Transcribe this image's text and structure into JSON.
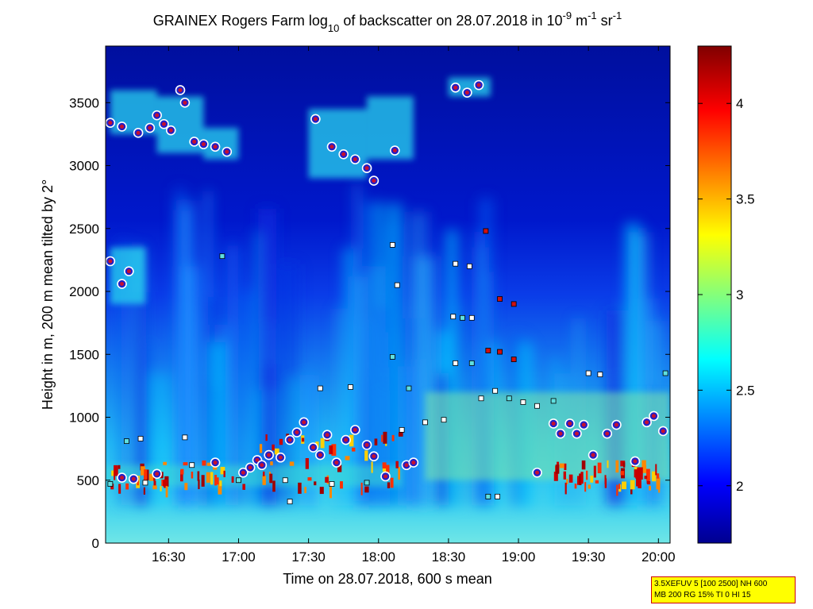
{
  "chart_data": {
    "type": "heatmap",
    "title": "GRAINEX Rogers Farm log",
    "title_sub": "10",
    "title_mid": " of backscatter on 28.07.2018 in 10",
    "title_sup1": "-9",
    "title_unit1": " m",
    "title_sup2": "-1",
    "title_unit2": " sr",
    "title_sup3": "-1",
    "xlabel": "Time on 28.07.2018, 600 s mean",
    "ylabel": "Height in m, 200 m mean tilted by 2°",
    "xlim": [
      "16:03",
      "20:05"
    ],
    "ylim": [
      0,
      3950
    ],
    "x_ticks": [
      "16:30",
      "17:00",
      "17:30",
      "18:00",
      "18:30",
      "19:00",
      "19:30",
      "20:00"
    ],
    "y_ticks": [
      0,
      500,
      1000,
      1500,
      2000,
      2500,
      3000,
      3500
    ],
    "colorbar": {
      "range": [
        1.7,
        4.3
      ],
      "ticks": [
        2,
        2.5,
        3,
        3.5,
        4
      ],
      "colormap": "jet",
      "colors": [
        "#00008f",
        "#0000ff",
        "#00ffff",
        "#ffff00",
        "#ff0000",
        "#800000"
      ]
    },
    "cloud_base_markers": [
      {
        "time": "16:05",
        "height": 3340
      },
      {
        "time": "16:10",
        "height": 3310
      },
      {
        "time": "16:17",
        "height": 3260
      },
      {
        "time": "16:22",
        "height": 3300
      },
      {
        "time": "16:25",
        "height": 3400
      },
      {
        "time": "16:28",
        "height": 3330
      },
      {
        "time": "16:31",
        "height": 3280
      },
      {
        "time": "16:35",
        "height": 3600
      },
      {
        "time": "16:37",
        "height": 3500
      },
      {
        "time": "16:41",
        "height": 3190
      },
      {
        "time": "16:45",
        "height": 3170
      },
      {
        "time": "16:50",
        "height": 3150
      },
      {
        "time": "16:55",
        "height": 3110
      },
      {
        "time": "17:33",
        "height": 3370
      },
      {
        "time": "17:40",
        "height": 3150
      },
      {
        "time": "17:45",
        "height": 3090
      },
      {
        "time": "17:50",
        "height": 3050
      },
      {
        "time": "17:55",
        "height": 2980
      },
      {
        "time": "17:58",
        "height": 2880
      },
      {
        "time": "18:07",
        "height": 3120
      },
      {
        "time": "18:33",
        "height": 3620
      },
      {
        "time": "18:38",
        "height": 3580
      },
      {
        "time": "18:43",
        "height": 3640
      },
      {
        "time": "16:05",
        "height": 2240
      },
      {
        "time": "16:10",
        "height": 2060
      },
      {
        "time": "16:13",
        "height": 2160
      },
      {
        "time": "16:10",
        "height": 520
      },
      {
        "time": "16:15",
        "height": 510
      },
      {
        "time": "16:25",
        "height": 550
      },
      {
        "time": "16:50",
        "height": 640
      },
      {
        "time": "17:02",
        "height": 560
      },
      {
        "time": "17:05",
        "height": 600
      },
      {
        "time": "17:08",
        "height": 660
      },
      {
        "time": "17:10",
        "height": 620
      },
      {
        "time": "17:13",
        "height": 700
      },
      {
        "time": "17:18",
        "height": 680
      },
      {
        "time": "17:22",
        "height": 820
      },
      {
        "time": "17:25",
        "height": 880
      },
      {
        "time": "17:28",
        "height": 960
      },
      {
        "time": "17:32",
        "height": 760
      },
      {
        "time": "17:35",
        "height": 700
      },
      {
        "time": "17:38",
        "height": 860
      },
      {
        "time": "17:42",
        "height": 640
      },
      {
        "time": "17:46",
        "height": 820
      },
      {
        "time": "17:50",
        "height": 900
      },
      {
        "time": "17:55",
        "height": 780
      },
      {
        "time": "17:58",
        "height": 690
      },
      {
        "time": "18:03",
        "height": 530
      },
      {
        "time": "18:12",
        "height": 620
      },
      {
        "time": "18:15",
        "height": 640
      },
      {
        "time": "19:08",
        "height": 560
      },
      {
        "time": "19:15",
        "height": 950
      },
      {
        "time": "19:18",
        "height": 870
      },
      {
        "time": "19:22",
        "height": 950
      },
      {
        "time": "19:25",
        "height": 870
      },
      {
        "time": "19:28",
        "height": 940
      },
      {
        "time": "19:32",
        "height": 700
      },
      {
        "time": "19:38",
        "height": 870
      },
      {
        "time": "19:42",
        "height": 940
      },
      {
        "time": "19:50",
        "height": 650
      },
      {
        "time": "19:55",
        "height": 960
      },
      {
        "time": "19:58",
        "height": 1010
      },
      {
        "time": "20:02",
        "height": 890
      }
    ],
    "layer_markers": [
      {
        "time": "16:12",
        "height": 810
      },
      {
        "time": "16:18",
        "height": 830
      },
      {
        "time": "16:37",
        "height": 840
      },
      {
        "time": "16:53",
        "height": 2280
      },
      {
        "time": "17:35",
        "height": 1230
      },
      {
        "time": "17:48",
        "height": 1240
      },
      {
        "time": "18:06",
        "height": 1480
      },
      {
        "time": "18:06",
        "height": 2370
      },
      {
        "time": "18:10",
        "height": 900
      },
      {
        "time": "18:13",
        "height": 1230
      },
      {
        "time": "18:08",
        "height": 2050
      },
      {
        "time": "18:32",
        "height": 1800
      },
      {
        "time": "18:36",
        "height": 1790
      },
      {
        "time": "18:40",
        "height": 1790
      },
      {
        "time": "18:33",
        "height": 1430
      },
      {
        "time": "18:40",
        "height": 1430
      },
      {
        "time": "18:47",
        "height": 1530
      },
      {
        "time": "18:52",
        "height": 1520
      },
      {
        "time": "18:58",
        "height": 1460
      },
      {
        "time": "18:44",
        "height": 1150
      },
      {
        "time": "18:50",
        "height": 1210
      },
      {
        "time": "18:56",
        "height": 1150
      },
      {
        "time": "19:02",
        "height": 1120
      },
      {
        "time": "19:08",
        "height": 1090
      },
      {
        "time": "19:15",
        "height": 1130
      },
      {
        "time": "19:30",
        "height": 1350
      },
      {
        "time": "19:35",
        "height": 1340
      },
      {
        "time": "20:03",
        "height": 1350
      },
      {
        "time": "18:33",
        "height": 2220
      },
      {
        "time": "18:39",
        "height": 2200
      },
      {
        "time": "18:52",
        "height": 1940
      },
      {
        "time": "18:58",
        "height": 1900
      },
      {
        "time": "18:46",
        "height": 2480
      },
      {
        "time": "18:47",
        "height": 370
      },
      {
        "time": "18:51",
        "height": 370
      },
      {
        "time": "17:22",
        "height": 330
      },
      {
        "time": "16:05",
        "height": 470
      },
      {
        "time": "16:20",
        "height": 480
      },
      {
        "time": "16:40",
        "height": 620
      },
      {
        "time": "17:00",
        "height": 500
      },
      {
        "time": "17:20",
        "height": 500
      },
      {
        "time": "17:40",
        "height": 470
      },
      {
        "time": "17:55",
        "height": 480
      },
      {
        "time": "18:20",
        "height": 960
      },
      {
        "time": "18:28",
        "height": 980
      }
    ]
  },
  "info_box": {
    "line1": "3.5XEFUV 5 [100 2500] NH 600",
    "line2": "MB 200 RG 15% TI 0 HI 15"
  }
}
